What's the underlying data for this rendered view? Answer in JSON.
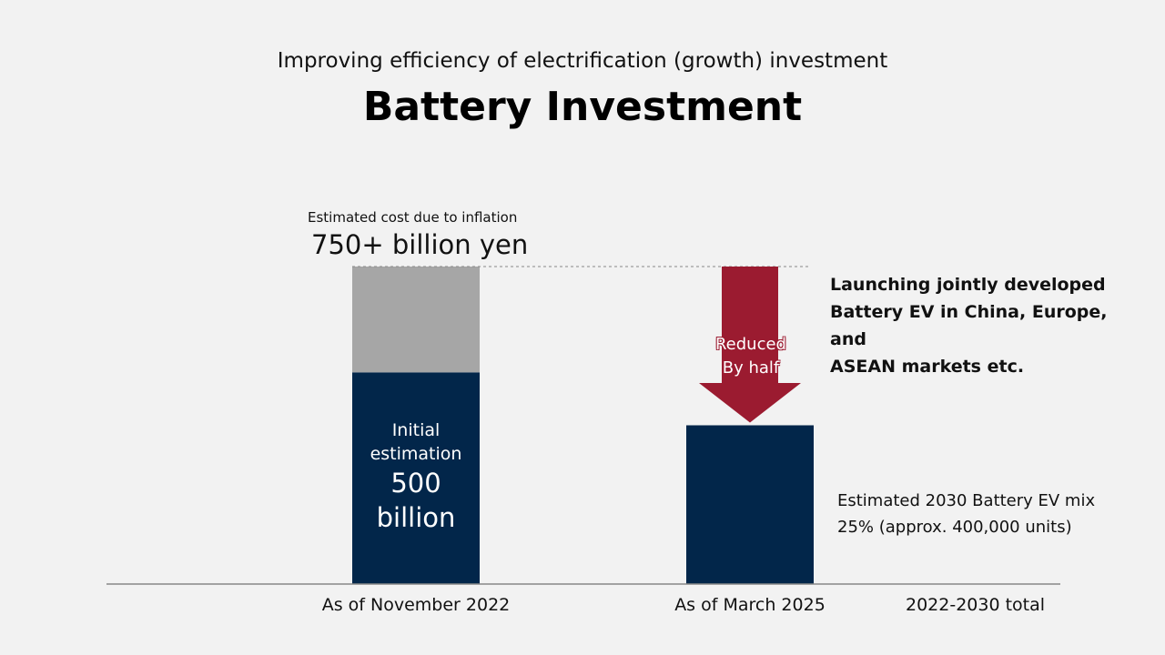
{
  "header": {
    "subtitle": "Improving efficiency of electrification (growth) investment",
    "title": "Battery Investment"
  },
  "colors": {
    "background": "#f2f2f2",
    "navy": "#02264a",
    "gray": "#a6a6a6",
    "crimson": "#9b1b30"
  },
  "annotations": {
    "inflation_label": "Estimated cost due to inflation",
    "inflation_value": "750+ billion yen",
    "initial_line1": "Initial",
    "initial_line2": "estimation",
    "initial_value1": "500",
    "initial_value2": "billion",
    "arrow_line1": "Reduced",
    "arrow_line2": "By half",
    "launch_note": [
      "Launching jointly developed",
      "Battery EV in China, Europe, and",
      "ASEAN markets etc."
    ],
    "mix_note": [
      "Estimated 2030 Battery EV mix",
      "25% (approx. 400,000 units)"
    ],
    "period_label": "2022-2030 total"
  },
  "chart_data": {
    "type": "bar",
    "categories": [
      "As of November 2022",
      "As of March 2025"
    ],
    "series": [
      {
        "values": [
          500,
          375
        ]
      },
      {
        "values": [
          250,
          0
        ]
      }
    ],
    "ylim": [
      0,
      750
    ],
    "grid": false
  }
}
